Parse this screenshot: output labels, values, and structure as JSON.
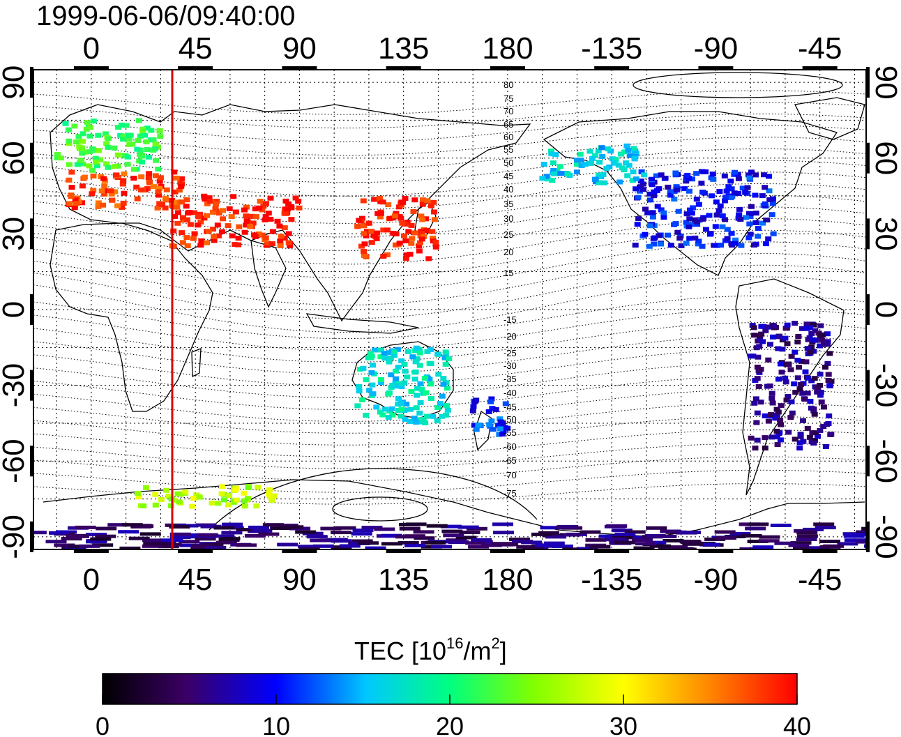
{
  "title": "1999-06-06/09:40:00",
  "lon_ticks": [
    "0",
    "45",
    "90",
    "135",
    "180",
    "-135",
    "-90",
    "-45"
  ],
  "lat_ticks": [
    "90",
    "60",
    "30",
    "0",
    "-30",
    "-60",
    "-90"
  ],
  "mlat_labels": [
    "80",
    "75",
    "70",
    "65",
    "60",
    "55",
    "50",
    "45",
    "40",
    "35",
    "30",
    "25",
    "20",
    "15",
    "-15",
    "-20",
    "-25",
    "-30",
    "-35",
    "-40",
    "-45",
    "-50",
    "-55",
    "-60",
    "-65",
    "-70",
    "-75"
  ],
  "colorbar": {
    "label_main": "TEC  [10",
    "label_exp1": "16",
    "label_mid": "/m",
    "label_exp2": "2",
    "label_end": "]",
    "ticks": [
      "0",
      "10",
      "20",
      "30",
      "40"
    ],
    "range": [
      0,
      40
    ]
  },
  "colors": {
    "marker_line": "#e00000",
    "background": "#ffffff",
    "frame": "#000000"
  },
  "marker_longitude": 35,
  "tec_regions": [
    {
      "name": "europe-high",
      "lon": [
        -15,
        30
      ],
      "lat": [
        55,
        75
      ],
      "tec": 22
    },
    {
      "name": "europe-mid",
      "lon": [
        -10,
        40
      ],
      "lat": [
        40,
        55
      ],
      "tec": 38
    },
    {
      "name": "middle-east",
      "lon": [
        35,
        90
      ],
      "lat": [
        25,
        45
      ],
      "tec": 39
    },
    {
      "name": "japan-china",
      "lon": [
        115,
        150
      ],
      "lat": [
        20,
        45
      ],
      "tec": 39
    },
    {
      "name": "north-america",
      "lon": [
        -125,
        -65
      ],
      "lat": [
        25,
        55
      ],
      "tec": 10
    },
    {
      "name": "alaska-canada",
      "lon": [
        -165,
        -120
      ],
      "lat": [
        50,
        65
      ],
      "tec": 16
    },
    {
      "name": "south-america",
      "lon": [
        -75,
        -40
      ],
      "lat": [
        -55,
        -5
      ],
      "tec": 6
    },
    {
      "name": "australia",
      "lon": [
        115,
        155
      ],
      "lat": [
        -45,
        -15
      ],
      "tec": 17
    },
    {
      "name": "new-zealand",
      "lon": [
        165,
        180
      ],
      "lat": [
        -50,
        -35
      ],
      "tec": 11
    },
    {
      "name": "antarctic-edge",
      "lon": [
        -25,
        360
      ],
      "lat": [
        -95,
        -85
      ],
      "tec": 5
    },
    {
      "name": "antarctic-coast",
      "lon": [
        20,
        80
      ],
      "lat": [
        -78,
        -70
      ],
      "tec": 27
    }
  ]
}
